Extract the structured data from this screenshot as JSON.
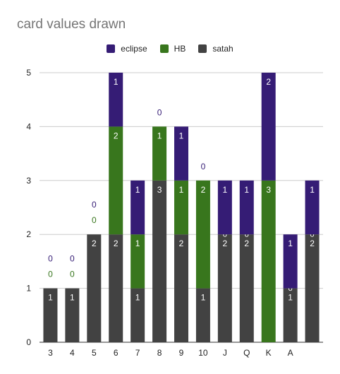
{
  "chart_data": {
    "type": "bar",
    "stacked": true,
    "title": "card values drawn",
    "categories": [
      "3",
      "4",
      "5",
      "6",
      "7",
      "8",
      "9",
      "10",
      "J",
      "Q",
      "K",
      "A",
      ""
    ],
    "series": [
      {
        "name": "satah",
        "color": "#424242",
        "values": [
          1,
          1,
          2,
          2,
          1,
          3,
          2,
          1,
          2,
          2,
          0,
          1,
          2
        ]
      },
      {
        "name": "HB",
        "color": "#38761d",
        "values": [
          0,
          0,
          0,
          2,
          1,
          1,
          1,
          2,
          0,
          0,
          3,
          0,
          0
        ]
      },
      {
        "name": "eclipse",
        "color": "#351c75",
        "values": [
          0,
          0,
          0,
          1,
          1,
          0,
          1,
          0,
          1,
          1,
          2,
          1,
          1
        ]
      }
    ],
    "legend_order": [
      "eclipse",
      "HB",
      "satah"
    ],
    "legend_position": "top",
    "ylim": [
      0,
      5
    ],
    "yticks": [
      0,
      1,
      2,
      3,
      4,
      5
    ],
    "grid": true,
    "xlabel": "",
    "ylabel": ""
  }
}
